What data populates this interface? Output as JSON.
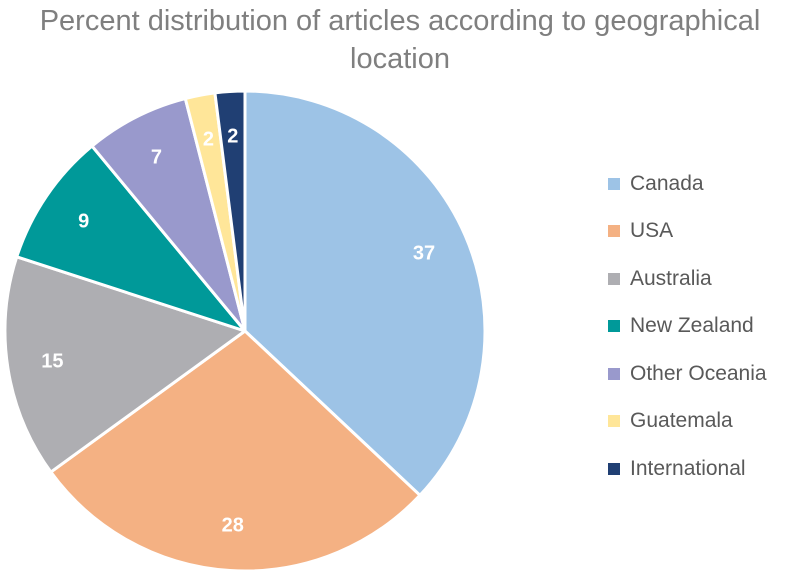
{
  "chart_data": {
    "type": "pie",
    "title": "Percent distribution of articles according to geographical location",
    "title_lines": [
      "Percent distribution of articles according to geographical",
      "location"
    ],
    "start_angle_deg": 0,
    "direction": "clockwise",
    "legend_position": "right",
    "slices": [
      {
        "label": "Canada",
        "value": 37,
        "color": "#9DC3E6"
      },
      {
        "label": "USA",
        "value": 28,
        "color": "#F4B183"
      },
      {
        "label": "Australia",
        "value": 15,
        "color": "#AEAEB2"
      },
      {
        "label": "New Zealand",
        "value": 9,
        "color": "#009999"
      },
      {
        "label": "Other Oceania",
        "value": 7,
        "color": "#9999CC"
      },
      {
        "label": "Guatemala",
        "value": 2,
        "color": "#FFE699"
      },
      {
        "label": "International",
        "value": 2,
        "color": "#203F73"
      }
    ]
  }
}
